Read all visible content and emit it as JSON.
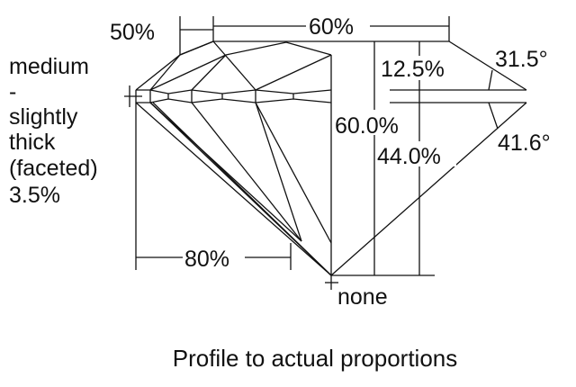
{
  "labels": {
    "crown_angle_pct": "50%",
    "table_pct": "60%",
    "girdle_lines": [
      "medium",
      "-",
      "slightly",
      "thick",
      "(faceted)",
      "3.5%"
    ],
    "crown_height": "12.5%",
    "crown_angle": "31.5°",
    "total_depth": "60.0%",
    "pavilion_depth": "44.0%",
    "pavilion_angle": "41.6°",
    "lower_half": "80%",
    "culet": "none"
  },
  "caption": "Profile to actual proportions"
}
